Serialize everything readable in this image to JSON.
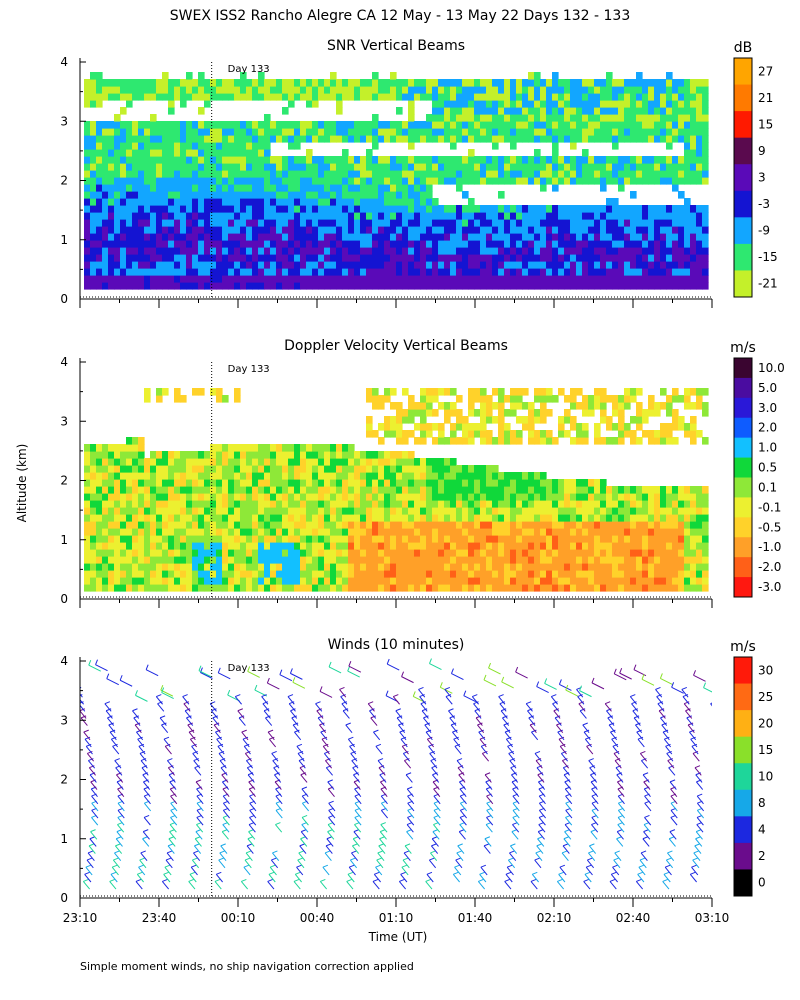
{
  "figure": {
    "title": "SWEX ISS2 Rancho Alegre CA  12 May - 13 May 22 Days 132 - 133",
    "ylabel": "Altitude (km)",
    "xlabel": "Time (UT)",
    "footnote": "Simple moment winds, no ship navigation correction applied",
    "day_marker_label": "Day 133"
  },
  "chart_data": [
    {
      "type": "heatmap",
      "title": "SNR Vertical Beams",
      "unit": "dB",
      "xlabel": "",
      "ylabel": "Altitude (km)",
      "x_range_minutes": [
        0,
        240
      ],
      "x_tick_minutes": [
        0,
        30,
        60,
        90,
        120,
        150,
        180,
        210,
        240
      ],
      "ylim": [
        0,
        4
      ],
      "y_ticks": [
        0,
        1,
        2,
        3,
        4
      ],
      "day_marker_minute": 50,
      "colorbar": {
        "labels": [
          "27",
          "21",
          "15",
          "9",
          "3",
          "-3",
          "-9",
          "-15",
          "-21"
        ],
        "colors": [
          "#ffa500",
          "#ff7a00",
          "#ff1a00",
          "#5a0a4e",
          "#5a0ab8",
          "#1414d2",
          "#12a6ff",
          "#2ee870",
          "#c4f02a"
        ]
      }
    },
    {
      "type": "heatmap",
      "title": "Doppler Velocity Vertical Beams",
      "unit": "m/s",
      "xlabel": "",
      "ylabel": "Altitude (km)",
      "x_range_minutes": [
        0,
        240
      ],
      "x_tick_minutes": [
        0,
        30,
        60,
        90,
        120,
        150,
        180,
        210,
        240
      ],
      "ylim": [
        0,
        4
      ],
      "y_ticks": [
        0,
        1,
        2,
        3,
        4
      ],
      "day_marker_minute": 50,
      "colorbar": {
        "labels": [
          "10.0",
          "5.0",
          "3.0",
          "2.0",
          "1.0",
          "0.5",
          "0.1",
          "-0.1",
          "-0.5",
          "-1.0",
          "-2.0",
          "-3.0"
        ],
        "colors": [
          "#3a0530",
          "#4a0ca0",
          "#2a18d8",
          "#0e5cff",
          "#12c0ff",
          "#10d83a",
          "#8ee838",
          "#ecf030",
          "#ffd22a",
          "#ffa028",
          "#ff6018",
          "#ff1810"
        ]
      }
    },
    {
      "type": "scatter",
      "title": "Winds (10 minutes)",
      "unit": "m/s",
      "xlabel": "Time (UT)",
      "ylabel": "Altitude (km)",
      "x_range_minutes": [
        0,
        240
      ],
      "x_tick_minutes": [
        0,
        30,
        60,
        90,
        120,
        150,
        180,
        210,
        240
      ],
      "x_tick_labels": [
        "23:10",
        "23:40",
        "00:10",
        "00:40",
        "01:10",
        "01:40",
        "02:10",
        "02:40",
        "03:10"
      ],
      "ylim": [
        0,
        4
      ],
      "y_ticks": [
        0,
        1,
        2,
        3,
        4
      ],
      "day_marker_minute": 50,
      "colorbar": {
        "labels": [
          "30",
          "25",
          "20",
          "15",
          "10",
          "8",
          "4",
          "2",
          "0"
        ],
        "colors": [
          "#ff1a0a",
          "#ff6a14",
          "#ffb014",
          "#8ae02a",
          "#1ed69a",
          "#16a8e8",
          "#1c28e0",
          "#6a0c8c",
          "#000000"
        ]
      }
    }
  ]
}
